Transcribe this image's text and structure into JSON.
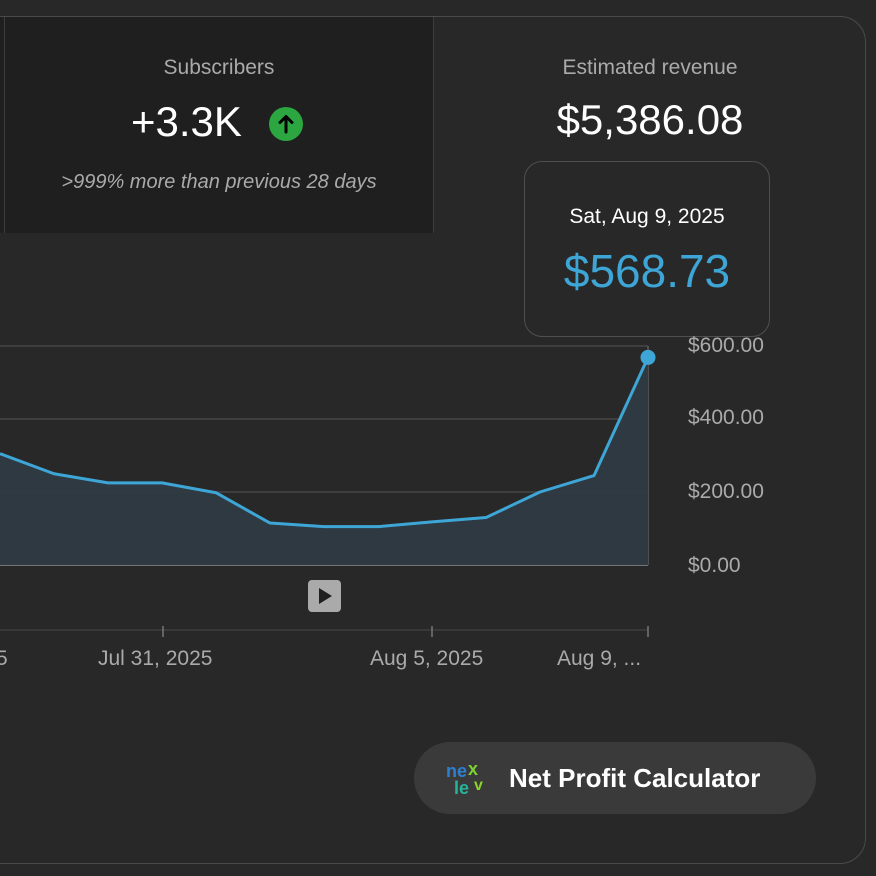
{
  "metrics": {
    "subscribers": {
      "label": "Subscribers",
      "value": "+3.3K",
      "trend": "up",
      "comparison": ">999% more than previous 28 days"
    },
    "revenue": {
      "label": "Estimated revenue",
      "value": "$5,386.08"
    }
  },
  "tooltip": {
    "date": "Sat, Aug 9, 2025",
    "value": "$568.73"
  },
  "chart_data": {
    "type": "area",
    "title": "",
    "series": [
      {
        "name": "Estimated revenue",
        "color": "#3ea6d6",
        "values": [
          305,
          250,
          225,
          225,
          198,
          115,
          105,
          105,
          118,
          130,
          200,
          245,
          568.73
        ]
      }
    ],
    "x_tick_labels": [
      "5",
      "Jul 31, 2025",
      "Aug 5, 2025",
      "Aug 9, ..."
    ],
    "y_tick_labels": [
      "$600.00",
      "$400.00",
      "$200.00",
      "$0.00"
    ],
    "y_ticks": [
      600,
      400,
      200,
      0
    ],
    "ylim": [
      0,
      600
    ],
    "grid": true,
    "highlighted_point": "$568.73"
  },
  "controls": {
    "play_icon": "play-icon"
  },
  "cta": {
    "label": "Net Profit Calculator",
    "logo_text": "nextlev"
  },
  "colors": {
    "accent": "#3ea6d6",
    "positive": "#2ba640",
    "background": "#282828"
  }
}
